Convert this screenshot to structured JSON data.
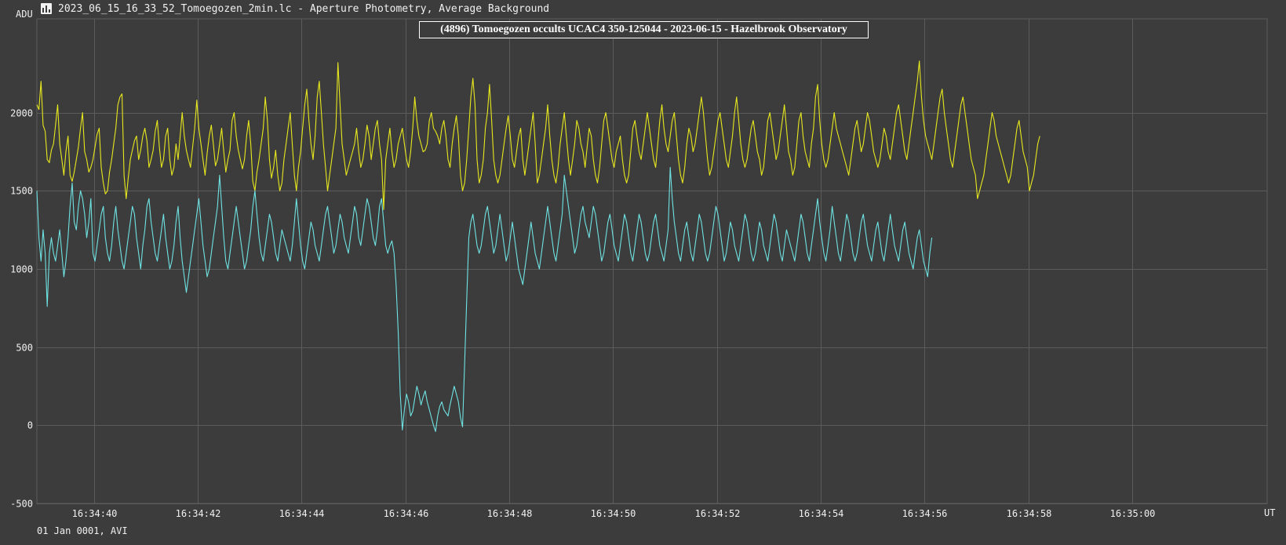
{
  "window": {
    "title": "2023_06_15_16_33_52_Tomoegozen_2min.lc - Aperture Photometry, Average Background",
    "icon": "chart-icon"
  },
  "footer": {
    "date_label": "01 Jan 0001, AVI"
  },
  "colors": {
    "background": "#3c3c3c",
    "grid": "#5c5c5c",
    "target_series": "#6fe3e3",
    "comparison_series": "#e8e81e"
  },
  "chart_data": {
    "type": "line",
    "title": "(4896) Tomoegozen occults UCAC4 350-125044 - 2023-06-15 - Hazelbrook Observatory",
    "ylabel": "ADU",
    "xlabel": "UT",
    "ylim": [
      -500,
      2600
    ],
    "xlim": [
      "16:34:38.9",
      "16:35:02.6"
    ],
    "yticks": [
      -500,
      0,
      500,
      1000,
      1500,
      2000
    ],
    "xticks": [
      "16:34:40",
      "16:34:42",
      "16:34:44",
      "16:34:46",
      "16:34:48",
      "16:34:50",
      "16:34:52",
      "16:34:54",
      "16:34:56",
      "16:34:58",
      "16:35:00"
    ],
    "grid": true,
    "legend": "none",
    "series": [
      {
        "color": "#e8e81e",
        "x_start": "16:34:38.9",
        "x_step_s": 0.04,
        "values": [
          2050,
          2020,
          2200,
          1920,
          1880,
          1700,
          1680,
          1760,
          1800,
          1920,
          2050,
          1800,
          1700,
          1600,
          1750,
          1850,
          1600,
          1560,
          1620,
          1700,
          1780,
          1900,
          2000,
          1750,
          1700,
          1620,
          1650,
          1700,
          1780,
          1860,
          1900,
          1650,
          1550,
          1480,
          1500,
          1620,
          1700,
          1800,
          1900,
          2050,
          2100,
          2120,
          1600,
          1450,
          1580,
          1700,
          1760,
          1820,
          1850,
          1700,
          1760,
          1850,
          1900,
          1820,
          1650,
          1700,
          1760,
          1880,
          1950,
          1780,
          1650,
          1700,
          1850,
          1900,
          1700,
          1600,
          1650,
          1800,
          1700,
          1850,
          2000,
          1850,
          1760,
          1700,
          1650,
          1780,
          1900,
          2080,
          1900,
          1800,
          1700,
          1600,
          1740,
          1850,
          1920,
          1800,
          1660,
          1700,
          1800,
          1900,
          1750,
          1620,
          1700,
          1760,
          1950,
          2000,
          1850,
          1760,
          1700,
          1640,
          1700,
          1850,
          1950,
          1800,
          1560,
          1500,
          1620,
          1700,
          1800,
          1900,
          2100,
          1950,
          1700,
          1580,
          1650,
          1760,
          1600,
          1500,
          1550,
          1700,
          1800,
          1900,
          2000,
          1800,
          1600,
          1500,
          1650,
          1750,
          1900,
          2050,
          2150,
          1950,
          1800,
          1700,
          1850,
          2100,
          2200,
          2000,
          1800,
          1650,
          1500,
          1600,
          1700,
          1800,
          1900,
          2320,
          2050,
          1800,
          1700,
          1600,
          1650,
          1700,
          1750,
          1800,
          1900,
          1750,
          1650,
          1700,
          1800,
          1920,
          1850,
          1700,
          1800,
          1900,
          1950,
          1800,
          1700,
          1380,
          1700,
          1800,
          1900,
          1750,
          1650,
          1700,
          1800,
          1850,
          1900,
          1800,
          1700,
          1650,
          1750,
          1900,
          2100,
          1950,
          1850,
          1800,
          1750,
          1760,
          1800,
          1950,
          2000,
          1900,
          1880,
          1850,
          1800,
          1900,
          1950,
          1850,
          1700,
          1650,
          1800,
          1900,
          1980,
          1850,
          1600,
          1500,
          1550,
          1700,
          1900,
          2100,
          2220,
          2050,
          1700,
          1550,
          1600,
          1700,
          1900,
          2000,
          2180,
          1950,
          1700,
          1600,
          1550,
          1600,
          1700,
          1800,
          1900,
          1980,
          1850,
          1700,
          1650,
          1750,
          1850,
          1900,
          1700,
          1600,
          1700,
          1800,
          1900,
          2000,
          1800,
          1550,
          1600,
          1700,
          1800,
          1900,
          2050,
          1850,
          1700,
          1600,
          1550,
          1650,
          1800,
          1900,
          2000,
          1850,
          1700,
          1600,
          1700,
          1800,
          1950,
          1900,
          1800,
          1750,
          1650,
          1780,
          1900,
          1850,
          1700,
          1600,
          1550,
          1650,
          1800,
          1950,
          2000,
          1900,
          1800,
          1700,
          1650,
          1750,
          1800,
          1850,
          1700,
          1600,
          1550,
          1600,
          1750,
          1900,
          1950,
          1850,
          1750,
          1700,
          1800,
          1900,
          2000,
          1900,
          1800,
          1700,
          1650,
          1800,
          1950,
          2050,
          1900,
          1800,
          1750,
          1850,
          1950,
          2000,
          1850,
          1700,
          1600,
          1550,
          1650,
          1800,
          1900,
          1850,
          1750,
          1800,
          1900,
          2000,
          2100,
          2000,
          1850,
          1700,
          1600,
          1650,
          1750,
          1850,
          1950,
          2000,
          1900,
          1800,
          1700,
          1650,
          1750,
          1850,
          2000,
          2100,
          1950,
          1800,
          1700,
          1650,
          1700,
          1800,
          1900,
          1950,
          1850,
          1750,
          1700,
          1600,
          1650,
          1800,
          1950,
          2000,
          1900,
          1800,
          1700,
          1750,
          1850,
          1950,
          2050,
          1900,
          1750,
          1700,
          1600,
          1650,
          1800,
          1950,
          2000,
          1850,
          1750,
          1700,
          1650,
          1800,
          1900,
          2100,
          2180,
          1950,
          1800,
          1700,
          1650,
          1700,
          1800,
          1900,
          2000,
          1900,
          1850,
          1800,
          1750,
          1700,
          1650,
          1600,
          1700,
          1800,
          1900,
          1950,
          1850,
          1750,
          1800,
          1900,
          2000,
          1950,
          1850,
          1750,
          1700,
          1650,
          1700,
          1800,
          1900,
          1850,
          1750,
          1700,
          1800,
          1900,
          2000,
          2050,
          1950,
          1850,
          1750,
          1700,
          1800,
          1900,
          2000,
          2100,
          2200,
          2330,
          2100,
          1950,
          1850,
          1800,
          1750,
          1700,
          1800,
          1900,
          2000,
          2100,
          2150,
          2000,
          1900,
          1800,
          1700,
          1650,
          1750,
          1850,
          1950,
          2050,
          2100,
          2000,
          1900,
          1800,
          1700,
          1650,
          1600,
          1450,
          1500,
          1550,
          1600,
          1700,
          1800,
          1900,
          2000,
          1950,
          1850,
          1800,
          1750,
          1700,
          1650,
          1600,
          1550,
          1600,
          1700,
          1800,
          1900,
          1950,
          1850,
          1750,
          1700,
          1650,
          1500,
          1550,
          1600,
          1700,
          1800,
          1850
        ]
      },
      {
        "color": "#6fe3e3",
        "x_start": "16:34:38.9",
        "x_step_s": 0.04,
        "values": [
          1500,
          1200,
          1050,
          1250,
          1100,
          760,
          1100,
          1200,
          1100,
          1050,
          1150,
          1250,
          1100,
          950,
          1050,
          1200,
          1400,
          1550,
          1300,
          1250,
          1400,
          1500,
          1450,
          1350,
          1200,
          1300,
          1450,
          1100,
          1050,
          1150,
          1250,
          1350,
          1400,
          1200,
          1100,
          1050,
          1150,
          1300,
          1400,
          1250,
          1150,
          1050,
          1000,
          1100,
          1200,
          1300,
          1400,
          1350,
          1200,
          1100,
          1000,
          1150,
          1250,
          1400,
          1450,
          1300,
          1200,
          1100,
          1050,
          1150,
          1250,
          1350,
          1200,
          1100,
          1000,
          1050,
          1150,
          1300,
          1400,
          1200,
          1050,
          950,
          850,
          950,
          1050,
          1150,
          1250,
          1350,
          1450,
          1300,
          1150,
          1050,
          950,
          1000,
          1100,
          1200,
          1300,
          1400,
          1600,
          1400,
          1200,
          1050,
          1000,
          1100,
          1200,
          1300,
          1400,
          1300,
          1200,
          1100,
          1000,
          1050,
          1150,
          1250,
          1400,
          1500,
          1350,
          1200,
          1100,
          1050,
          1150,
          1250,
          1350,
          1300,
          1200,
          1100,
          1050,
          1150,
          1250,
          1200,
          1150,
          1100,
          1050,
          1150,
          1300,
          1450,
          1300,
          1150,
          1050,
          1000,
          1100,
          1200,
          1300,
          1250,
          1150,
          1100,
          1050,
          1150,
          1250,
          1350,
          1400,
          1300,
          1200,
          1100,
          1150,
          1250,
          1350,
          1300,
          1200,
          1150,
          1100,
          1200,
          1300,
          1400,
          1350,
          1200,
          1150,
          1250,
          1350,
          1450,
          1400,
          1300,
          1200,
          1150,
          1250,
          1400,
          1450,
          1300,
          1150,
          1100,
          1150,
          1180,
          1100,
          900,
          600,
          200,
          -30,
          100,
          200,
          150,
          60,
          90,
          170,
          250,
          200,
          130,
          180,
          220,
          150,
          100,
          50,
          0,
          -40,
          60,
          120,
          150,
          100,
          80,
          60,
          130,
          190,
          250,
          200,
          150,
          50,
          -10,
          400,
          800,
          1200,
          1300,
          1350,
          1250,
          1150,
          1100,
          1150,
          1250,
          1350,
          1400,
          1300,
          1200,
          1100,
          1150,
          1250,
          1350,
          1250,
          1150,
          1050,
          1100,
          1200,
          1300,
          1200,
          1100,
          1000,
          950,
          900,
          1000,
          1100,
          1200,
          1300,
          1200,
          1100,
          1050,
          1000,
          1100,
          1200,
          1300,
          1400,
          1300,
          1200,
          1100,
          1050,
          1150,
          1250,
          1350,
          1600,
          1500,
          1400,
          1300,
          1200,
          1100,
          1150,
          1250,
          1350,
          1400,
          1300,
          1250,
          1200,
          1300,
          1400,
          1350,
          1250,
          1150,
          1050,
          1100,
          1200,
          1300,
          1350,
          1250,
          1150,
          1100,
          1050,
          1150,
          1250,
          1350,
          1300,
          1200,
          1100,
          1050,
          1150,
          1250,
          1350,
          1300,
          1200,
          1100,
          1050,
          1100,
          1200,
          1300,
          1350,
          1250,
          1150,
          1100,
          1050,
          1150,
          1250,
          1650,
          1450,
          1300,
          1200,
          1100,
          1050,
          1150,
          1250,
          1300,
          1200,
          1100,
          1050,
          1150,
          1250,
          1350,
          1300,
          1200,
          1100,
          1050,
          1100,
          1200,
          1300,
          1400,
          1350,
          1250,
          1150,
          1050,
          1100,
          1200,
          1300,
          1250,
          1150,
          1100,
          1050,
          1150,
          1250,
          1350,
          1300,
          1200,
          1100,
          1050,
          1100,
          1200,
          1300,
          1250,
          1150,
          1100,
          1050,
          1150,
          1250,
          1350,
          1300,
          1200,
          1100,
          1050,
          1150,
          1250,
          1200,
          1150,
          1100,
          1050,
          1150,
          1250,
          1350,
          1300,
          1200,
          1100,
          1050,
          1150,
          1250,
          1350,
          1450,
          1300,
          1200,
          1100,
          1050,
          1150,
          1250,
          1400,
          1300,
          1200,
          1100,
          1050,
          1150,
          1250,
          1350,
          1300,
          1200,
          1100,
          1050,
          1100,
          1200,
          1300,
          1350,
          1250,
          1150,
          1100,
          1050,
          1150,
          1250,
          1300,
          1200,
          1100,
          1050,
          1150,
          1250,
          1350,
          1250,
          1150,
          1100,
          1050,
          1150,
          1250,
          1300,
          1200,
          1100,
          1050,
          1000,
          1100,
          1200,
          1250,
          1150,
          1050,
          1000,
          950,
          1100,
          1200
        ]
      }
    ]
  }
}
